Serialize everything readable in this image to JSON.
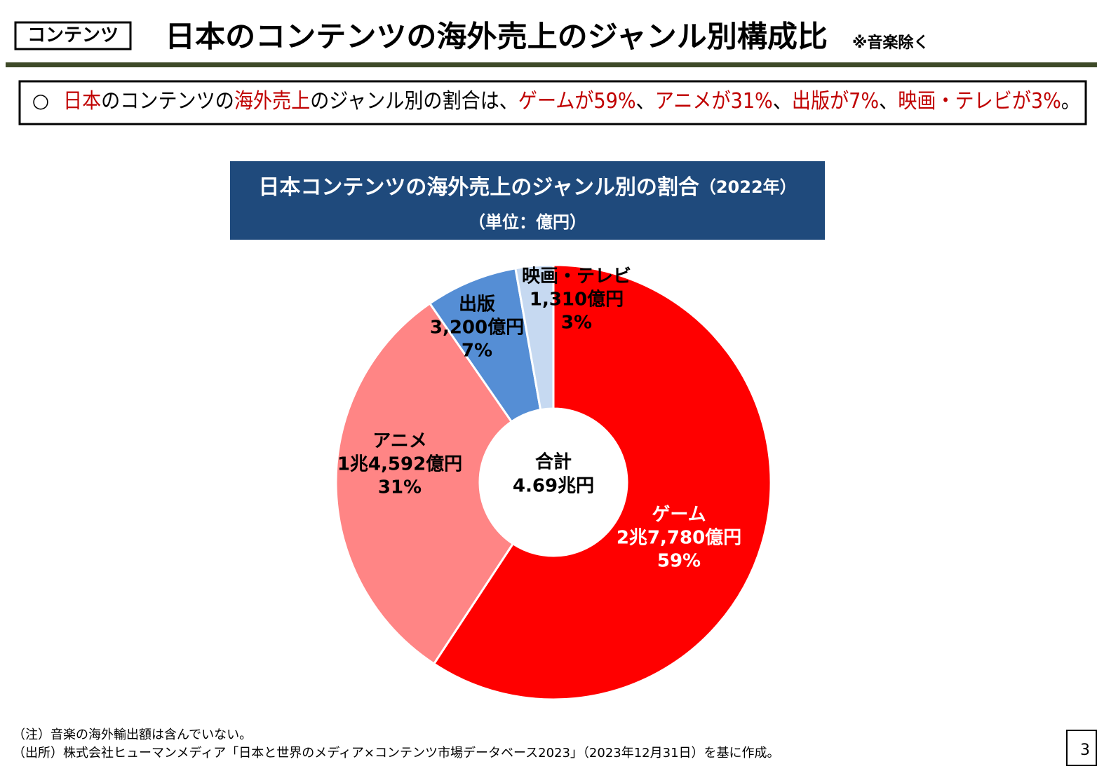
{
  "header": {
    "tag": "コンテンツ",
    "title": "日本のコンテンツの海外売上のジャンル別構成比",
    "note": "※音楽除く"
  },
  "summary": {
    "marker": "○",
    "segments": [
      {
        "text": "日本",
        "highlight": true
      },
      {
        "text": "のコンテンツの",
        "highlight": false
      },
      {
        "text": "海外売上",
        "highlight": true
      },
      {
        "text": "のジャンル別の割合は、",
        "highlight": false
      },
      {
        "text": "ゲームが59%",
        "highlight": true
      },
      {
        "text": "、",
        "highlight": false
      },
      {
        "text": "アニメが31%",
        "highlight": true
      },
      {
        "text": "、",
        "highlight": false
      },
      {
        "text": "出版が7%",
        "highlight": true
      },
      {
        "text": "、",
        "highlight": false
      },
      {
        "text": "映画・テレビが3%",
        "highlight": true
      },
      {
        "text": "。",
        "highlight": false
      }
    ]
  },
  "chart_data": {
    "type": "donut",
    "title": "日本コンテンツの海外売上のジャンル別の割合",
    "title_suffix": "（2022年）",
    "subtitle": "（単位：億円）",
    "categories": [
      "ゲーム",
      "アニメ",
      "出版",
      "映画・テレビ"
    ],
    "values": [
      27780,
      14592,
      3200,
      1310
    ],
    "value_labels": [
      "2兆7,780億円",
      "1兆4,592億円",
      "3,200億円",
      "1,310億円"
    ],
    "percent_labels": [
      "59%",
      "31%",
      "7%",
      "3%"
    ],
    "colors": [
      "#ff0000",
      "#ff8585",
      "#558ed5",
      "#c6d9f1"
    ],
    "center_label": [
      "合計",
      "4.69兆円"
    ]
  },
  "footnotes": [
    "（注）音楽の海外輸出額は含んでいない。",
    "（出所）株式会社ヒューマンメディア「日本と世界のメディア×コンテンツ市場データベース2023」（2023年12月31日）を基に作成。"
  ],
  "page_number": "3"
}
